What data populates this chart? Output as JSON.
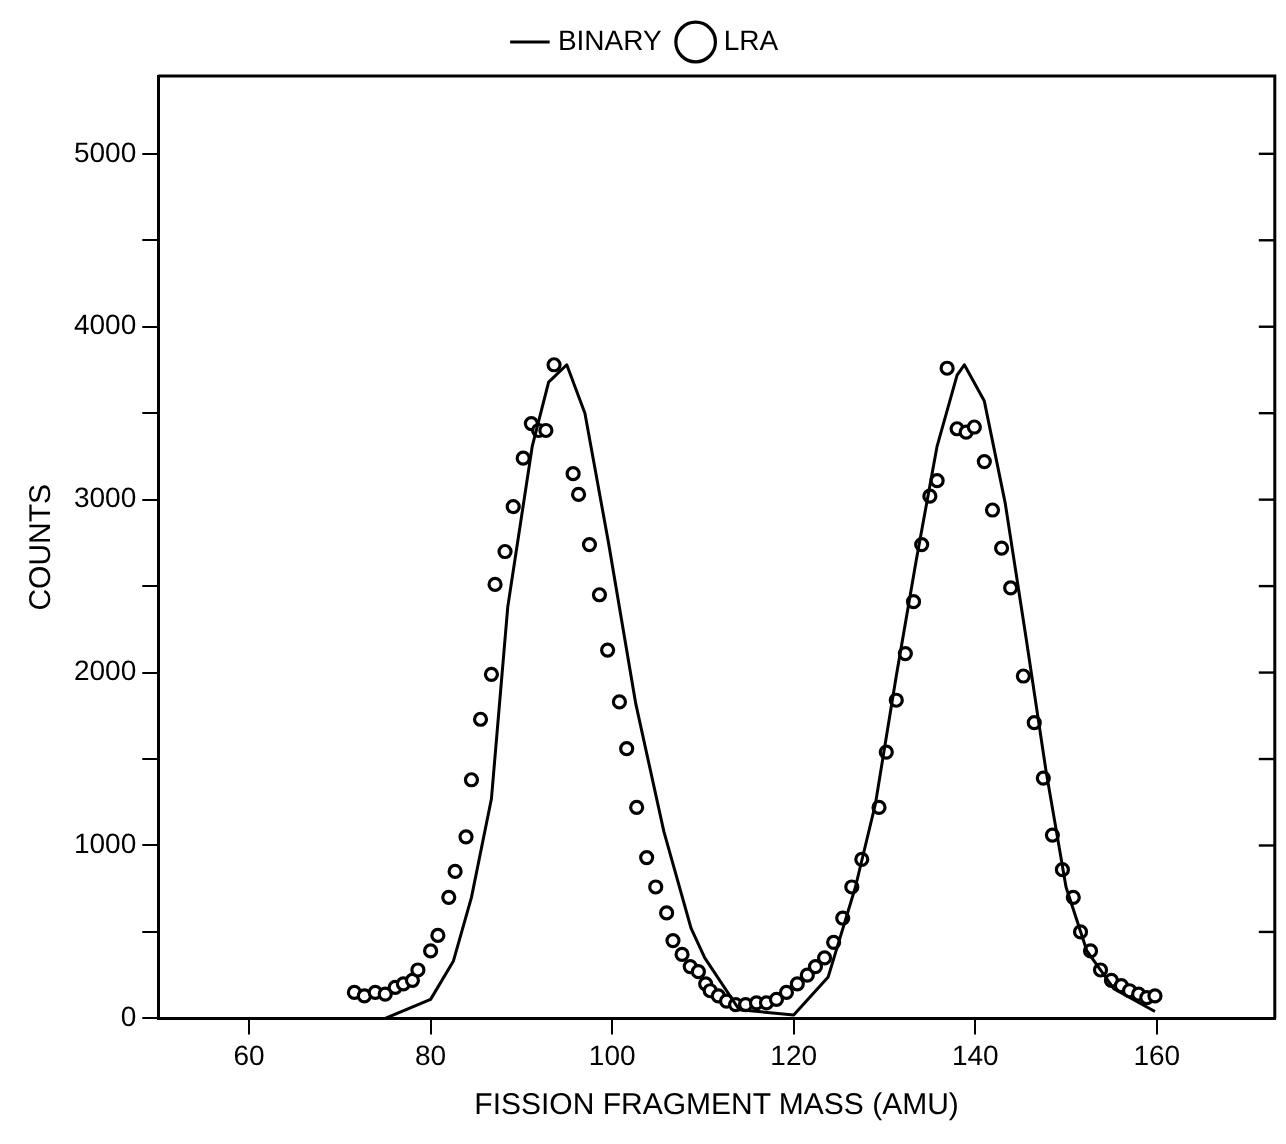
{
  "chart_data": {
    "type": "line",
    "xlabel": "FISSION FRAGMENT MASS (AMU)",
    "ylabel": "COUNTS",
    "xlim": [
      50,
      173
    ],
    "xticks": [
      60,
      80,
      100,
      120,
      140,
      160
    ],
    "ylim": [
      0,
      5450
    ],
    "yticks": [
      0,
      {
        "value": 500,
        "label": null
      },
      1000,
      {
        "value": 1500,
        "label": null
      },
      2000,
      {
        "value": 2500,
        "label": null
      },
      3000,
      {
        "value": 3500,
        "label": null
      },
      4000,
      {
        "value": 4500,
        "label": null
      },
      5000
    ],
    "grid": false,
    "legend": "top",
    "series": [
      {
        "name": "BINARY",
        "color": "#000000",
        "marker": "none",
        "x": [
          75,
          80,
          82.5,
          84.5,
          86.7,
          88.5,
          91.2,
          93,
          95,
          97,
          99.6,
          102.6,
          105.7,
          108.7,
          110.2,
          114,
          120,
          123.8,
          126.8,
          129,
          131.3,
          133.5,
          135.8,
          138,
          138.8,
          141,
          143.3,
          145.6,
          147.8,
          150,
          152.3,
          155.3,
          159.8
        ],
        "values": [
          0,
          110,
          330,
          700,
          1270,
          2380,
          3310,
          3680,
          3780,
          3500,
          2750,
          1820,
          1080,
          520,
          350,
          50,
          20,
          240,
          760,
          1240,
          1980,
          2650,
          3310,
          3720,
          3780,
          3570,
          2980,
          2200,
          1430,
          760,
          390,
          170,
          40
        ]
      },
      {
        "name": "LRA",
        "type": "scatter",
        "color": "#000000",
        "marker": "circle",
        "x": [
          71.6,
          72.7,
          73.9,
          75,
          76.1,
          77,
          78,
          78.6,
          80,
          80.8,
          82,
          82.7,
          83.9,
          84.5,
          85.5,
          86.7,
          87.1,
          88.2,
          89.1,
          90.2,
          91.1,
          91.9,
          92.7,
          93.6,
          95.7,
          96.3,
          97.5,
          98.6,
          99.5,
          100.8,
          101.6,
          102.7,
          103.8,
          104.8,
          106,
          106.7,
          107.7,
          108.6,
          109.5,
          110.3,
          110.8,
          111.7,
          112.6,
          113.6,
          114.7,
          115.9,
          117,
          118.1,
          119.2,
          120.4,
          121.5,
          122.4,
          123.4,
          124.4,
          125.4,
          126.4,
          127.5,
          129.4,
          130.2,
          131.3,
          132.3,
          133.2,
          134.1,
          135,
          135.8,
          136.9,
          138,
          139,
          139.9,
          141,
          141.9,
          142.9,
          143.9,
          145.3,
          146.5,
          147.5,
          148.5,
          149.6,
          150.8,
          151.6,
          152.7,
          153.8,
          155,
          156.1,
          157,
          158,
          158.9,
          159.8
        ],
        "values": [
          150,
          130,
          150,
          140,
          180,
          200,
          220,
          280,
          390,
          480,
          700,
          850,
          1050,
          1380,
          1730,
          1990,
          2510,
          2700,
          2960,
          3240,
          3440,
          3400,
          3400,
          3780,
          3150,
          3030,
          2740,
          2450,
          2130,
          1830,
          1560,
          1220,
          930,
          760,
          610,
          450,
          370,
          300,
          270,
          200,
          160,
          130,
          100,
          80,
          80,
          90,
          90,
          110,
          150,
          200,
          250,
          300,
          350,
          440,
          580,
          760,
          920,
          1220,
          1540,
          1840,
          2110,
          2410,
          2740,
          3020,
          3110,
          3760,
          3410,
          3390,
          3420,
          3220,
          2940,
          2720,
          2490,
          1980,
          1710,
          1390,
          1060,
          860,
          700,
          500,
          390,
          280,
          220,
          190,
          160,
          140,
          120,
          130
        ]
      }
    ]
  }
}
